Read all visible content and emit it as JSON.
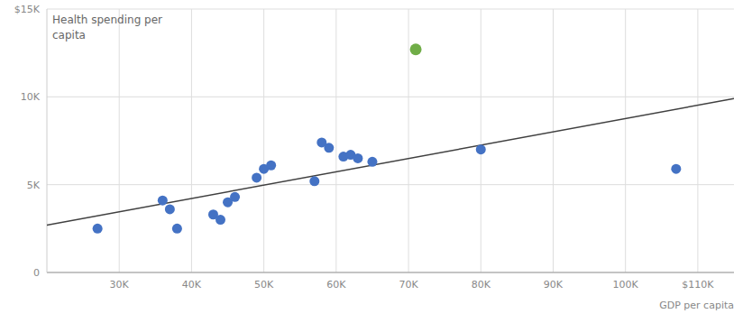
{
  "chart_data": {
    "type": "scatter",
    "title": "Health spending per\ncapita",
    "x_label": "GDP per capita",
    "series": [
      {
        "type": "line",
        "color": "#404040",
        "x": [
          20000,
          115000
        ],
        "values": [
          2700,
          9900
        ]
      },
      {
        "type": "scatter",
        "color": "#4472C4",
        "x": [
          27000,
          36000,
          37000,
          38000,
          43000,
          44000,
          45000,
          46000,
          49000,
          50000,
          51000,
          57000,
          58000,
          59000,
          61000,
          62000,
          63000,
          65000,
          80000,
          107000
        ],
        "values": [
          2500,
          4100,
          3600,
          2500,
          3300,
          3000,
          4000,
          4300,
          5400,
          5900,
          6100,
          5200,
          7400,
          7100,
          6600,
          6700,
          6500,
          6300,
          7000,
          5900
        ]
      },
      {
        "type": "scatter",
        "color": "#70AD47",
        "x": [
          71000
        ],
        "values": [
          12700
        ]
      }
    ],
    "xlim": [
      20000,
      115000
    ],
    "ylim": [
      0,
      15000
    ],
    "xticks": [
      {
        "value": 30000,
        "label": "30K"
      },
      {
        "value": 40000,
        "label": "40K"
      },
      {
        "value": 50000,
        "label": "50K"
      },
      {
        "value": 60000,
        "label": "60K"
      },
      {
        "value": 70000,
        "label": "70K"
      },
      {
        "value": 80000,
        "label": "80K"
      },
      {
        "value": 90000,
        "label": "90K"
      },
      {
        "value": 100000,
        "label": "100K"
      },
      {
        "value": 110000,
        "label": "$110K"
      }
    ],
    "yticks": [
      0,
      {
        "value": 5000,
        "label": "5K"
      },
      {
        "value": 10000,
        "label": "10K"
      },
      {
        "value": 15000,
        "label": "$15K"
      }
    ],
    "grid": true
  }
}
